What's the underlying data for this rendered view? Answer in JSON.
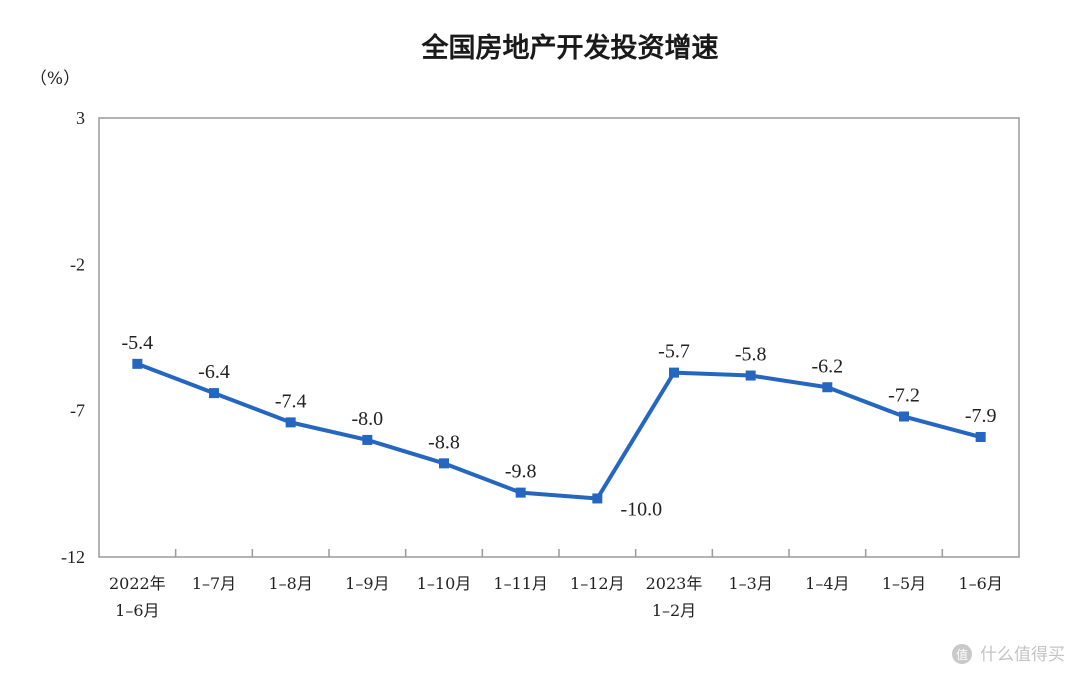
{
  "chart_data": {
    "type": "line",
    "title": "全国房地产开发投资增速",
    "unit_label": "（%）",
    "categories": [
      [
        "2022年",
        "1–6月"
      ],
      [
        "1–7月"
      ],
      [
        "1–8月"
      ],
      [
        "1–9月"
      ],
      [
        "1–10月"
      ],
      [
        "1–11月"
      ],
      [
        "1–12月"
      ],
      [
        "2023年",
        "1–2月"
      ],
      [
        "1–3月"
      ],
      [
        "1–4月"
      ],
      [
        "1–5月"
      ],
      [
        "1–6月"
      ]
    ],
    "values": [
      -5.4,
      -6.4,
      -7.4,
      -8.0,
      -8.8,
      -9.8,
      -10.0,
      -5.7,
      -5.8,
      -6.2,
      -7.2,
      -7.9
    ],
    "data_labels": [
      "-5.4",
      "-6.4",
      "-7.4",
      "-8.0",
      "-8.8",
      "-9.8",
      "-10.0",
      "-5.7",
      "-5.8",
      "-6.2",
      "-7.2",
      "-7.9"
    ],
    "y_ticks": [
      3,
      -2,
      -7,
      -12
    ],
    "ylim": [
      -12,
      3
    ],
    "grid": false,
    "legend": "none",
    "series_color": "#2466c0"
  },
  "watermark": {
    "text": "什么值得买",
    "icon": "zhi-logo-icon"
  }
}
